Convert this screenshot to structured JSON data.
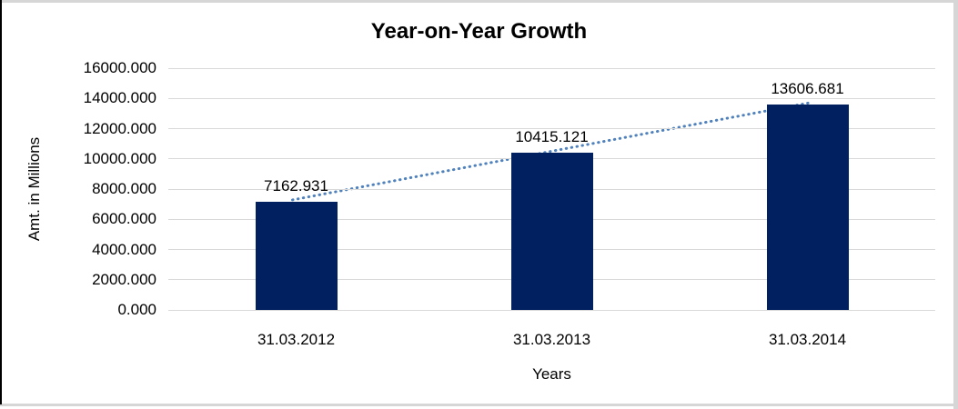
{
  "chart_data": {
    "type": "bar",
    "title": "Year-on-Year Growth",
    "xlabel": "Years",
    "ylabel": "Amt. in Millions",
    "categories": [
      "31.03.2012",
      "31.03.2013",
      "31.03.2014"
    ],
    "values": [
      7162.931,
      10415.121,
      13606.681
    ],
    "data_labels": [
      "7162.931",
      "10415.121",
      "13606.681"
    ],
    "ylim": [
      0,
      16000
    ],
    "ytick_step": 2000,
    "ytick_labels": [
      "0.000",
      "2000.000",
      "4000.000",
      "6000.000",
      "8000.000",
      "10000.000",
      "12000.000",
      "14000.000",
      "16000.000"
    ],
    "grid": true,
    "legend": "none",
    "colors": {
      "bar_fill": "#002060",
      "trendline": "#4f81bd",
      "gridline": "#d9d9d9",
      "text": "#000000"
    },
    "trendline": {
      "style": "dotted",
      "from_category": "31.03.2012",
      "to_category": "31.03.2014"
    }
  }
}
